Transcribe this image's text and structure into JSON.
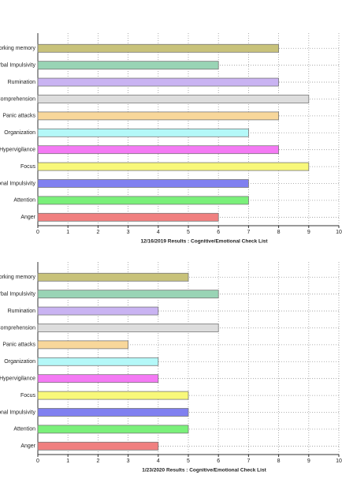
{
  "chart_data": [
    {
      "type": "barh",
      "title": "12/16/2019 Results : Cognitive/Emotional Check List",
      "categories": [
        "orking memory",
        "rbal Impulsivity",
        "Rumination",
        "Comprehension",
        "Panic attacks",
        "Organization",
        "Hypervigilance",
        "Focus",
        "onal Impulsivity",
        "Attention",
        "Anger"
      ],
      "values": [
        8,
        6,
        8,
        9,
        8,
        7,
        8,
        9,
        7,
        7,
        6
      ],
      "colors": [
        "#c8c27a",
        "#99d4b5",
        "#c9b3f2",
        "#dddddd",
        "#f8d79a",
        "#b4f8f8",
        "#f47af4",
        "#f8f87a",
        "#8080f0",
        "#7af07a",
        "#f08080"
      ],
      "xlim": [
        0,
        10
      ],
      "xticks": [
        0,
        1,
        2,
        3,
        4,
        5,
        6,
        7,
        8,
        9,
        10
      ],
      "grid": true
    },
    {
      "type": "barh",
      "title": "1/23/2020 Results : Cognitive/Emotional Check List",
      "categories": [
        "orking memory",
        "rbal Impulsivity",
        "Rumination",
        "Comprehension",
        "Panic attacks",
        "Organization",
        "Hypervigilance",
        "Focus",
        "onal Impulsivity",
        "Attention",
        "Anger"
      ],
      "values": [
        5,
        6,
        4,
        6,
        3,
        4,
        4,
        5,
        5,
        5,
        4
      ],
      "colors": [
        "#c8c27a",
        "#99d4b5",
        "#c9b3f2",
        "#dddddd",
        "#f8d79a",
        "#b4f8f8",
        "#f47af4",
        "#f8f87a",
        "#8080f0",
        "#7af07a",
        "#f08080"
      ],
      "xlim": [
        0,
        10
      ],
      "xticks": [
        0,
        1,
        2,
        3,
        4,
        5,
        6,
        7,
        8,
        9,
        10
      ],
      "grid": true
    }
  ]
}
